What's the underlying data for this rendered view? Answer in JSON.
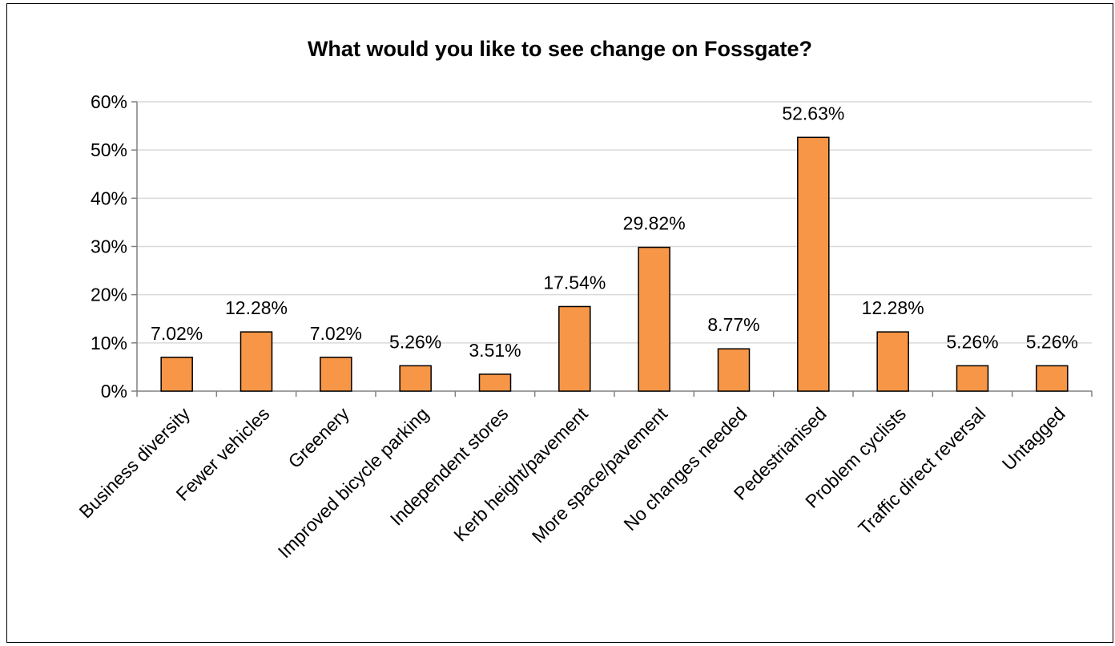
{
  "chart_data": {
    "type": "bar",
    "title": "What would you like to see change on Fossgate?",
    "xlabel": "",
    "ylabel": "",
    "categories": [
      "Business diversity",
      "Fewer vehicles",
      "Greenery",
      "Improved bicycle parking",
      "Independent stores",
      "Kerb height/pavement",
      "More space/pavement",
      "No changes needed",
      "Pedestrianised",
      "Problem cyclists",
      "Traffic direct reversal",
      "Untagged"
    ],
    "values": [
      7.02,
      12.28,
      7.02,
      5.26,
      3.51,
      17.54,
      29.82,
      8.77,
      52.63,
      12.28,
      5.26,
      5.26
    ],
    "data_labels": [
      "7.02%",
      "12.28%",
      "7.02%",
      "5.26%",
      "3.51%",
      "17.54%",
      "29.82%",
      "8.77%",
      "52.63%",
      "12.28%",
      "5.26%",
      "5.26%"
    ],
    "ylim": [
      0,
      60
    ],
    "y_ticks": [
      "0%",
      "10%",
      "20%",
      "30%",
      "40%",
      "50%",
      "60%"
    ],
    "grid": true,
    "legend": "none",
    "bar_color": "#F79646",
    "bar_edge_color": "#000000",
    "grid_color": "#D9D9D9"
  }
}
